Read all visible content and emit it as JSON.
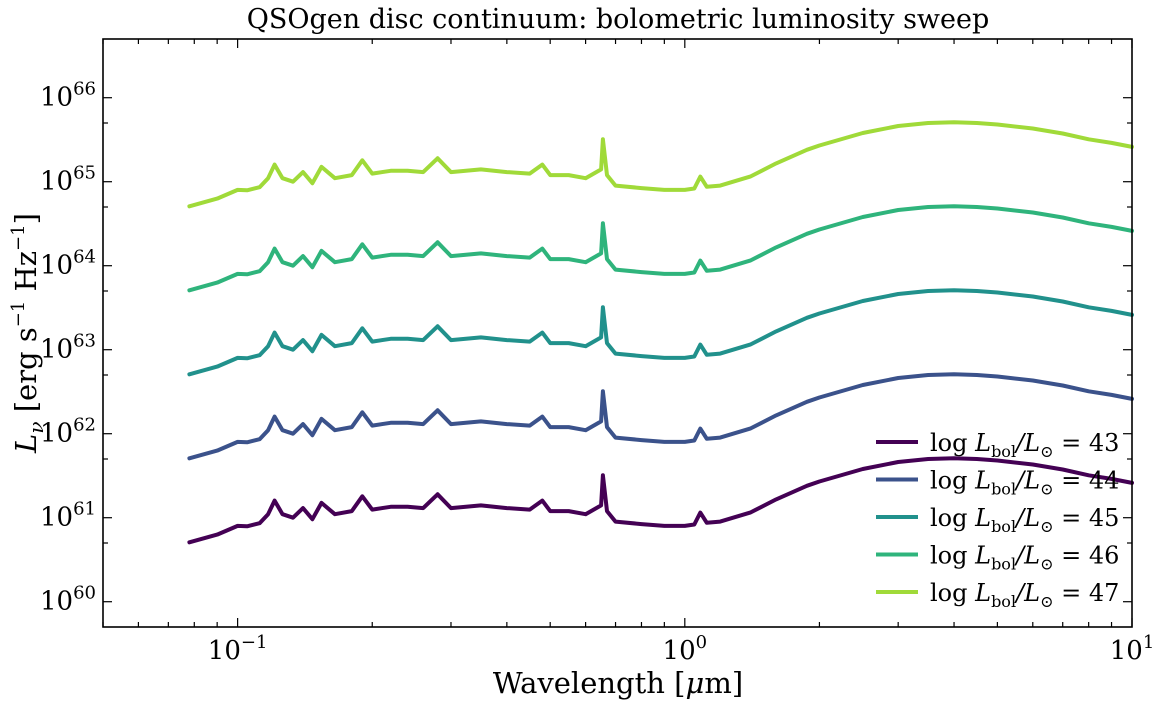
{
  "chart_data": {
    "type": "line",
    "title": "QSOgen disc continuum: bolometric luminosity sweep",
    "xlabel": "Wavelength [μm]",
    "ylabel": "L_ν [erg s⁻¹ Hz⁻¹]",
    "xscale": "log",
    "yscale": "log",
    "xlim": [
      0.05,
      10
    ],
    "ylim": [
      5e+59,
      5e+66
    ],
    "x_ticks": [
      {
        "value": 0.1,
        "base": "10",
        "exp": "−1"
      },
      {
        "value": 1,
        "base": "10",
        "exp": "0"
      },
      {
        "value": 10,
        "base": "10",
        "exp": "1"
      }
    ],
    "y_ticks": [
      {
        "value": 1e+60,
        "base": "10",
        "exp": "60"
      },
      {
        "value": 1e+61,
        "base": "10",
        "exp": "61"
      },
      {
        "value": 1e+62,
        "base": "10",
        "exp": "62"
      },
      {
        "value": 1e+63,
        "base": "10",
        "exp": "63"
      },
      {
        "value": 1e+64,
        "base": "10",
        "exp": "64"
      },
      {
        "value": 1e+65,
        "base": "10",
        "exp": "65"
      },
      {
        "value": 1e+66,
        "base": "10",
        "exp": "66"
      }
    ],
    "grid": false,
    "legend_position": "lower-right",
    "x": [
      0.078,
      0.09,
      0.1,
      0.105,
      0.112,
      0.117,
      0.121,
      0.126,
      0.133,
      0.14,
      0.147,
      0.154,
      0.165,
      0.18,
      0.19,
      0.2,
      0.22,
      0.24,
      0.26,
      0.28,
      0.3,
      0.35,
      0.4,
      0.45,
      0.48,
      0.5,
      0.55,
      0.6,
      0.65,
      0.656,
      0.67,
      0.7,
      0.8,
      0.9,
      1.0,
      1.05,
      1.083,
      1.12,
      1.2,
      1.282,
      1.4,
      1.6,
      1.875,
      2.0,
      2.5,
      3.0,
      3.5,
      4.0,
      4.5,
      5.0,
      6.0,
      7.0,
      8.0,
      9.0,
      10.0
    ],
    "series": [
      {
        "name": "log L_bol/L⊙ = 43",
        "color": "#440154",
        "values": [
          5.1e+60,
          6.3e+60,
          8e+60,
          7.9e+60,
          8.6e+60,
          1.1e+61,
          1.6e+61,
          1.1e+61,
          1e+61,
          1.3e+61,
          9.6e+60,
          1.5e+61,
          1.1e+61,
          1.2e+61,
          1.8e+61,
          1.25e+61,
          1.35e+61,
          1.35e+61,
          1.3e+61,
          1.9e+61,
          1.3e+61,
          1.4e+61,
          1.3e+61,
          1.25e+61,
          1.6e+61,
          1.2e+61,
          1.2e+61,
          1.1e+61,
          1.4e+61,
          3.2e+61,
          1.2e+61,
          9e+60,
          8.4e+60,
          8e+60,
          8e+60,
          8.3e+60,
          1.15e+61,
          8.7e+60,
          9e+60,
          1e+61,
          1.15e+61,
          1.65e+61,
          2.4e+61,
          2.7e+61,
          3.8e+61,
          4.6e+61,
          5e+61,
          5.1e+61,
          5e+61,
          4.8e+61,
          4.3e+61,
          3.75e+61,
          3.2e+61,
          2.9e+61,
          2.6e+61
        ]
      },
      {
        "name": "log L_bol/L⊙ = 44",
        "color": "#3b528b",
        "values": [
          5.1e+61,
          6.3e+61,
          8e+61,
          7.9e+61,
          8.6e+61,
          1.1e+62,
          1.6e+62,
          1.1e+62,
          1e+62,
          1.3e+62,
          9.6e+61,
          1.5e+62,
          1.1e+62,
          1.2e+62,
          1.8e+62,
          1.25e+62,
          1.35e+62,
          1.35e+62,
          1.3e+62,
          1.9e+62,
          1.3e+62,
          1.4e+62,
          1.3e+62,
          1.25e+62,
          1.6e+62,
          1.2e+62,
          1.2e+62,
          1.1e+62,
          1.4e+62,
          3.2e+62,
          1.2e+62,
          9e+61,
          8.4e+61,
          8e+61,
          8e+61,
          8.3e+61,
          1.15e+62,
          8.7e+61,
          9e+61,
          1e+62,
          1.15e+62,
          1.65e+62,
          2.4e+62,
          2.7e+62,
          3.8e+62,
          4.6e+62,
          5e+62,
          5.1e+62,
          5e+62,
          4.8e+62,
          4.3e+62,
          3.75e+62,
          3.2e+62,
          2.9e+62,
          2.6e+62
        ]
      },
      {
        "name": "log L_bol/L⊙ = 45",
        "color": "#21918c",
        "values": [
          5.1e+62,
          6.3e+62,
          8e+62,
          7.9e+62,
          8.6e+62,
          1.1e+63,
          1.6e+63,
          1.1e+63,
          1e+63,
          1.3e+63,
          9.6e+62,
          1.5e+63,
          1.1e+63,
          1.2e+63,
          1.8e+63,
          1.25e+63,
          1.35e+63,
          1.35e+63,
          1.3e+63,
          1.9e+63,
          1.3e+63,
          1.4e+63,
          1.3e+63,
          1.25e+63,
          1.6e+63,
          1.2e+63,
          1.2e+63,
          1.1e+63,
          1.4e+63,
          3.2e+63,
          1.2e+63,
          9e+62,
          8.4e+62,
          8e+62,
          8e+62,
          8.3e+62,
          1.15e+63,
          8.7e+62,
          9e+62,
          1e+63,
          1.15e+63,
          1.65e+63,
          2.4e+63,
          2.7e+63,
          3.8e+63,
          4.6e+63,
          5e+63,
          5.1e+63,
          5e+63,
          4.8e+63,
          4.3e+63,
          3.75e+63,
          3.2e+63,
          2.9e+63,
          2.6e+63
        ]
      },
      {
        "name": "log L_bol/L⊙ = 46",
        "color": "#2fb47c",
        "values": [
          5.1e+63,
          6.3e+63,
          8e+63,
          7.9e+63,
          8.6e+63,
          1.1e+64,
          1.6e+64,
          1.1e+64,
          1e+64,
          1.3e+64,
          9.6e+63,
          1.5e+64,
          1.1e+64,
          1.2e+64,
          1.8e+64,
          1.25e+64,
          1.35e+64,
          1.35e+64,
          1.3e+64,
          1.9e+64,
          1.3e+64,
          1.4e+64,
          1.3e+64,
          1.25e+64,
          1.6e+64,
          1.2e+64,
          1.2e+64,
          1.1e+64,
          1.4e+64,
          3.2e+64,
          1.2e+64,
          9e+63,
          8.4e+63,
          8e+63,
          8e+63,
          8.3e+63,
          1.15e+64,
          8.7e+63,
          9e+63,
          1e+64,
          1.15e+64,
          1.65e+64,
          2.4e+64,
          2.7e+64,
          3.8e+64,
          4.6e+64,
          5e+64,
          5.1e+64,
          5e+64,
          4.8e+64,
          4.3e+64,
          3.75e+64,
          3.2e+64,
          2.9e+64,
          2.6e+64
        ]
      },
      {
        "name": "log L_bol/L⊙ = 47",
        "color": "#a0da39",
        "values": [
          5.1e+64,
          6.3e+64,
          8e+64,
          7.9e+64,
          8.6e+64,
          1.1e+65,
          1.6e+65,
          1.1e+65,
          1e+65,
          1.3e+65,
          9.6e+64,
          1.5e+65,
          1.1e+65,
          1.2e+65,
          1.8e+65,
          1.25e+65,
          1.35e+65,
          1.35e+65,
          1.3e+65,
          1.9e+65,
          1.3e+65,
          1.4e+65,
          1.3e+65,
          1.25e+65,
          1.6e+65,
          1.2e+65,
          1.2e+65,
          1.1e+65,
          1.4e+65,
          3.2e+65,
          1.2e+65,
          9e+64,
          8.4e+64,
          8e+64,
          8e+64,
          8.3e+64,
          1.15e+65,
          8.7e+64,
          9e+64,
          1e+65,
          1.15e+65,
          1.65e+65,
          2.4e+65,
          2.7e+65,
          3.8e+65,
          4.6e+65,
          5e+65,
          5.1e+65,
          5e+65,
          4.8e+65,
          4.3e+65,
          3.75e+65,
          3.2e+65,
          2.9e+65,
          2.6e+65
        ]
      }
    ],
    "legend": [
      {
        "prefix": "log ",
        "L": "L",
        "sub": "bol",
        "mid": "/L",
        "sun": "⊙",
        "value": " = 43"
      },
      {
        "prefix": "log ",
        "L": "L",
        "sub": "bol",
        "mid": "/L",
        "sun": "⊙",
        "value": " = 44"
      },
      {
        "prefix": "log ",
        "L": "L",
        "sub": "bol",
        "mid": "/L",
        "sun": "⊙",
        "value": " = 45"
      },
      {
        "prefix": "log ",
        "L": "L",
        "sub": "bol",
        "mid": "/L",
        "sun": "⊙",
        "value": " = 46"
      },
      {
        "prefix": "log ",
        "L": "L",
        "sub": "bol",
        "mid": "/L",
        "sun": "⊙",
        "value": " = 47"
      }
    ],
    "xlabel_parts": {
      "text": "Wavelength [",
      "mu": "μ",
      "unit": "m]"
    },
    "ylabel_parts": {
      "L": "L",
      "nu": "ν",
      "unit1": " [erg s",
      "exp1": "−1",
      "unit2": " Hz",
      "exp2": "−1",
      "close": "]"
    }
  }
}
